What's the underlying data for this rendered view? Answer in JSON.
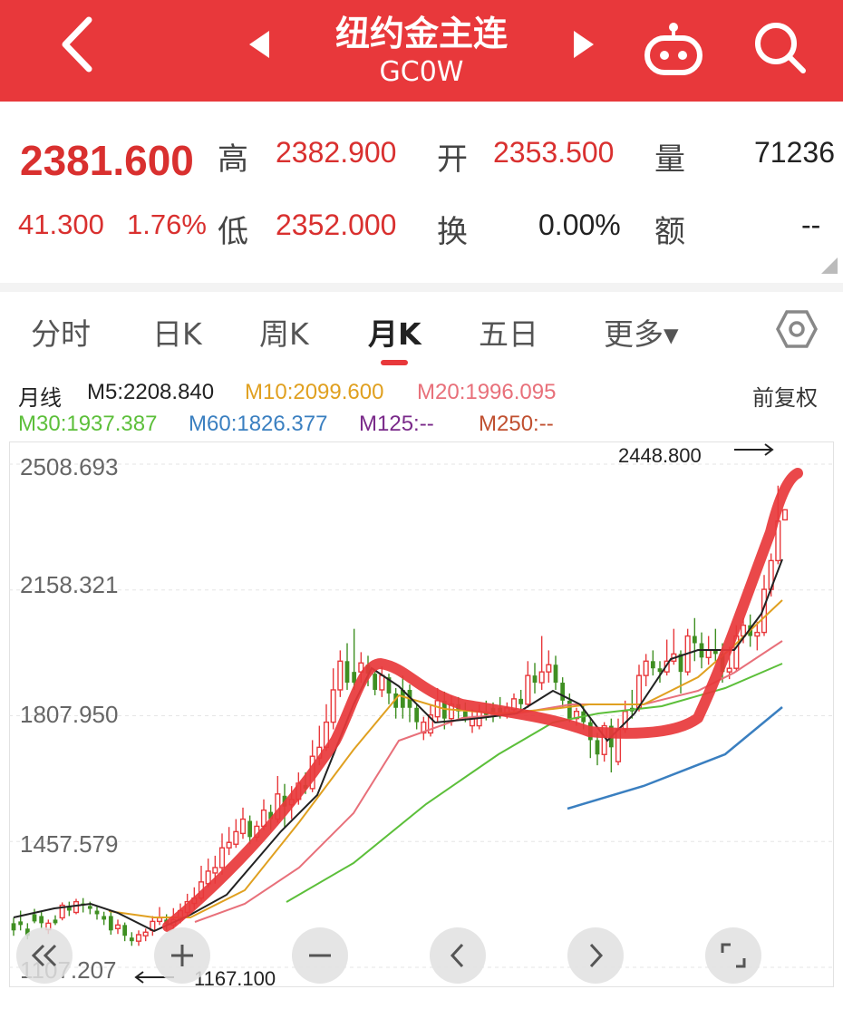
{
  "header": {
    "title": "纽约金主连",
    "code": "GC0W",
    "icons": [
      "back-icon",
      "prev-icon",
      "next-icon",
      "robot-icon",
      "search-icon"
    ],
    "bg_color": "#e8383b"
  },
  "quote": {
    "price": "2381.600",
    "change": "41.300",
    "change_pct": "1.76%",
    "high_label": "高",
    "high": "2382.900",
    "open_label": "开",
    "open": "2353.500",
    "volume_label": "量",
    "volume": "71236",
    "low_label": "低",
    "low": "2352.000",
    "turnover_label": "换",
    "turnover": "0.00%",
    "amount_label": "额",
    "amount": "--"
  },
  "tabs": [
    {
      "label": "分时"
    },
    {
      "label": "日K"
    },
    {
      "label": "周K"
    },
    {
      "label": "月K",
      "active": true
    },
    {
      "label": "五日"
    },
    {
      "label": "更多▾"
    }
  ],
  "indicators": {
    "line_type": "月线",
    "m5": "M5:2208.840",
    "m10": "M10:2099.600",
    "m20": "M20:1996.095",
    "m30": "M30:1937.387",
    "m60": "M60:1826.377",
    "m125": "M125:--",
    "m250": "M250:--",
    "adjust": "前复权",
    "colors": {
      "m5": "#222222",
      "m10": "#e0a020",
      "m20": "#e8707a",
      "m30": "#5cbf3a",
      "m60": "#3a7fc0",
      "m125": "#7a2a8a",
      "m250": "#c05030"
    }
  },
  "chart": {
    "y_labels": [
      "2508.693",
      "2158.321",
      "1807.950",
      "1457.579",
      "1107.207"
    ],
    "max_annotation": "2448.800",
    "min_annotation": "1167.100"
  },
  "chart_data": {
    "type": "candlestick",
    "ylim": [
      1107.207,
      2508.693
    ],
    "y_ticks": [
      2508.693,
      2158.321,
      1807.95,
      1457.579,
      1107.207
    ],
    "high_marker": 2448.8,
    "low_marker": 1167.1,
    "candles": [
      {
        "o": 1210,
        "c": 1230,
        "h": 1245,
        "l": 1195,
        "up": false
      },
      {
        "o": 1225,
        "c": 1235,
        "h": 1265,
        "l": 1210,
        "up": false
      },
      {
        "o": 1215,
        "c": 1195,
        "h": 1230,
        "l": 1185,
        "up": false
      },
      {
        "o": 1235,
        "c": 1255,
        "h": 1270,
        "l": 1230,
        "up": false
      },
      {
        "o": 1250,
        "c": 1230,
        "h": 1262,
        "l": 1215,
        "up": false
      },
      {
        "o": 1212,
        "c": 1230,
        "h": 1240,
        "l": 1200,
        "up": true
      },
      {
        "o": 1230,
        "c": 1240,
        "h": 1252,
        "l": 1225,
        "up": false
      },
      {
        "o": 1245,
        "c": 1280,
        "h": 1288,
        "l": 1238,
        "up": true
      },
      {
        "o": 1275,
        "c": 1265,
        "h": 1290,
        "l": 1250,
        "up": false
      },
      {
        "o": 1260,
        "c": 1290,
        "h": 1298,
        "l": 1255,
        "up": true
      },
      {
        "o": 1285,
        "c": 1280,
        "h": 1300,
        "l": 1260,
        "up": false
      },
      {
        "o": 1278,
        "c": 1270,
        "h": 1290,
        "l": 1255,
        "up": false
      },
      {
        "o": 1265,
        "c": 1255,
        "h": 1276,
        "l": 1240,
        "up": false
      },
      {
        "o": 1250,
        "c": 1240,
        "h": 1262,
        "l": 1225,
        "up": false
      },
      {
        "o": 1250,
        "c": 1210,
        "h": 1262,
        "l": 1198,
        "up": false
      },
      {
        "o": 1215,
        "c": 1225,
        "h": 1240,
        "l": 1200,
        "up": true
      },
      {
        "o": 1225,
        "c": 1195,
        "h": 1232,
        "l": 1180,
        "up": false
      },
      {
        "o": 1190,
        "c": 1180,
        "h": 1205,
        "l": 1167,
        "up": false
      },
      {
        "o": 1180,
        "c": 1198,
        "h": 1210,
        "l": 1167,
        "up": true
      },
      {
        "o": 1195,
        "c": 1205,
        "h": 1215,
        "l": 1180,
        "up": true
      },
      {
        "o": 1210,
        "c": 1235,
        "h": 1250,
        "l": 1195,
        "up": true
      },
      {
        "o": 1235,
        "c": 1245,
        "h": 1275,
        "l": 1225,
        "up": true
      },
      {
        "o": 1240,
        "c": 1228,
        "h": 1255,
        "l": 1210,
        "up": false
      },
      {
        "o": 1225,
        "c": 1240,
        "h": 1272,
        "l": 1215,
        "up": true
      },
      {
        "o": 1240,
        "c": 1265,
        "h": 1285,
        "l": 1230,
        "up": true
      },
      {
        "o": 1260,
        "c": 1290,
        "h": 1312,
        "l": 1250,
        "up": true
      },
      {
        "o": 1285,
        "c": 1300,
        "h": 1330,
        "l": 1268,
        "up": true
      },
      {
        "o": 1300,
        "c": 1345,
        "h": 1390,
        "l": 1290,
        "up": true
      },
      {
        "o": 1340,
        "c": 1375,
        "h": 1410,
        "l": 1330,
        "up": true
      },
      {
        "o": 1370,
        "c": 1385,
        "h": 1418,
        "l": 1340,
        "up": true
      },
      {
        "o": 1385,
        "c": 1440,
        "h": 1480,
        "l": 1365,
        "up": true
      },
      {
        "o": 1440,
        "c": 1455,
        "h": 1498,
        "l": 1420,
        "up": true
      },
      {
        "o": 1450,
        "c": 1485,
        "h": 1520,
        "l": 1440,
        "up": true
      },
      {
        "o": 1480,
        "c": 1520,
        "h": 1552,
        "l": 1465,
        "up": true
      },
      {
        "o": 1515,
        "c": 1470,
        "h": 1530,
        "l": 1450,
        "up": false
      },
      {
        "o": 1470,
        "c": 1500,
        "h": 1515,
        "l": 1460,
        "up": true
      },
      {
        "o": 1500,
        "c": 1545,
        "h": 1575,
        "l": 1490,
        "up": true
      },
      {
        "o": 1540,
        "c": 1520,
        "h": 1560,
        "l": 1490,
        "up": false
      },
      {
        "o": 1520,
        "c": 1590,
        "h": 1640,
        "l": 1510,
        "up": true
      },
      {
        "o": 1585,
        "c": 1555,
        "h": 1618,
        "l": 1498,
        "up": false
      },
      {
        "o": 1560,
        "c": 1575,
        "h": 1612,
        "l": 1520,
        "up": true
      },
      {
        "o": 1575,
        "c": 1620,
        "h": 1650,
        "l": 1560,
        "up": true
      },
      {
        "o": 1615,
        "c": 1605,
        "h": 1650,
        "l": 1590,
        "up": false
      },
      {
        "o": 1605,
        "c": 1695,
        "h": 1740,
        "l": 1595,
        "up": true
      },
      {
        "o": 1690,
        "c": 1720,
        "h": 1780,
        "l": 1670,
        "up": true
      },
      {
        "o": 1720,
        "c": 1790,
        "h": 1840,
        "l": 1710,
        "up": true
      },
      {
        "o": 1790,
        "c": 1880,
        "h": 1940,
        "l": 1770,
        "up": true
      },
      {
        "o": 1880,
        "c": 1960,
        "h": 1990,
        "l": 1860,
        "up": true
      },
      {
        "o": 1960,
        "c": 1900,
        "h": 2010,
        "l": 1880,
        "up": false
      },
      {
        "o": 1900,
        "c": 1930,
        "h": 2050,
        "l": 1880,
        "up": false
      },
      {
        "o": 1930,
        "c": 1955,
        "h": 1985,
        "l": 1900,
        "up": true
      },
      {
        "o": 1950,
        "c": 1925,
        "h": 1975,
        "l": 1890,
        "up": false
      },
      {
        "o": 1925,
        "c": 1880,
        "h": 1930,
        "l": 1865,
        "up": false
      },
      {
        "o": 1880,
        "c": 1920,
        "h": 1945,
        "l": 1860,
        "up": true
      },
      {
        "o": 1915,
        "c": 1870,
        "h": 1925,
        "l": 1840,
        "up": false
      },
      {
        "o": 1870,
        "c": 1830,
        "h": 1885,
        "l": 1800,
        "up": false
      },
      {
        "o": 1830,
        "c": 1880,
        "h": 1920,
        "l": 1800,
        "up": false
      },
      {
        "o": 1880,
        "c": 1830,
        "h": 1895,
        "l": 1790,
        "up": false
      },
      {
        "o": 1830,
        "c": 1790,
        "h": 1840,
        "l": 1770,
        "up": false
      },
      {
        "o": 1790,
        "c": 1760,
        "h": 1805,
        "l": 1740,
        "up": true
      },
      {
        "o": 1760,
        "c": 1810,
        "h": 1840,
        "l": 1750,
        "up": true
      },
      {
        "o": 1805,
        "c": 1850,
        "h": 1885,
        "l": 1790,
        "up": true
      },
      {
        "o": 1850,
        "c": 1800,
        "h": 1875,
        "l": 1770,
        "up": false
      },
      {
        "o": 1800,
        "c": 1840,
        "h": 1865,
        "l": 1780,
        "up": true
      },
      {
        "o": 1840,
        "c": 1820,
        "h": 1860,
        "l": 1800,
        "up": false
      },
      {
        "o": 1820,
        "c": 1800,
        "h": 1845,
        "l": 1790,
        "up": false
      },
      {
        "o": 1800,
        "c": 1780,
        "h": 1825,
        "l": 1760,
        "up": true
      },
      {
        "o": 1780,
        "c": 1820,
        "h": 1840,
        "l": 1770,
        "up": true
      },
      {
        "o": 1820,
        "c": 1810,
        "h": 1850,
        "l": 1795,
        "up": false
      },
      {
        "o": 1810,
        "c": 1830,
        "h": 1845,
        "l": 1790,
        "up": false
      },
      {
        "o": 1830,
        "c": 1815,
        "h": 1860,
        "l": 1800,
        "up": false
      },
      {
        "o": 1815,
        "c": 1830,
        "h": 1845,
        "l": 1800,
        "up": true
      },
      {
        "o": 1825,
        "c": 1855,
        "h": 1870,
        "l": 1810,
        "up": true
      },
      {
        "o": 1855,
        "c": 1840,
        "h": 1880,
        "l": 1820,
        "up": false
      },
      {
        "o": 1840,
        "c": 1920,
        "h": 1960,
        "l": 1830,
        "up": true
      },
      {
        "o": 1920,
        "c": 1900,
        "h": 1955,
        "l": 1870,
        "up": false
      },
      {
        "o": 1900,
        "c": 1930,
        "h": 2030,
        "l": 1880,
        "up": true
      },
      {
        "o": 1930,
        "c": 1950,
        "h": 1990,
        "l": 1900,
        "up": true
      },
      {
        "o": 1950,
        "c": 1900,
        "h": 1975,
        "l": 1880,
        "up": false
      },
      {
        "o": 1900,
        "c": 1850,
        "h": 1915,
        "l": 1830,
        "up": false
      },
      {
        "o": 1850,
        "c": 1800,
        "h": 1870,
        "l": 1790,
        "up": false
      },
      {
        "o": 1800,
        "c": 1820,
        "h": 1830,
        "l": 1780,
        "up": true
      },
      {
        "o": 1820,
        "c": 1790,
        "h": 1835,
        "l": 1770,
        "up": false
      },
      {
        "o": 1790,
        "c": 1740,
        "h": 1800,
        "l": 1690,
        "up": false
      },
      {
        "o": 1740,
        "c": 1700,
        "h": 1760,
        "l": 1670,
        "up": false
      },
      {
        "o": 1700,
        "c": 1780,
        "h": 1790,
        "l": 1680,
        "up": true
      },
      {
        "o": 1780,
        "c": 1720,
        "h": 1800,
        "l": 1650,
        "up": false
      },
      {
        "o": 1680,
        "c": 1770,
        "h": 1800,
        "l": 1670,
        "up": true
      },
      {
        "o": 1770,
        "c": 1820,
        "h": 1850,
        "l": 1760,
        "up": true
      },
      {
        "o": 1820,
        "c": 1830,
        "h": 1880,
        "l": 1800,
        "up": false
      },
      {
        "o": 1830,
        "c": 1920,
        "h": 1950,
        "l": 1820,
        "up": true
      },
      {
        "o": 1920,
        "c": 1960,
        "h": 1980,
        "l": 1890,
        "up": true
      },
      {
        "o": 1960,
        "c": 1940,
        "h": 1990,
        "l": 1920,
        "up": false
      },
      {
        "o": 1940,
        "c": 1930,
        "h": 1960,
        "l": 1900,
        "up": false
      },
      {
        "o": 1930,
        "c": 1960,
        "h": 2020,
        "l": 1920,
        "up": true
      },
      {
        "o": 1960,
        "c": 1980,
        "h": 2050,
        "l": 1950,
        "up": true
      },
      {
        "o": 1980,
        "c": 1930,
        "h": 1990,
        "l": 1870,
        "up": false
      },
      {
        "o": 1930,
        "c": 2030,
        "h": 2050,
        "l": 1920,
        "up": true
      },
      {
        "o": 2030,
        "c": 2010,
        "h": 2080,
        "l": 1960,
        "up": false
      },
      {
        "o": 2010,
        "c": 1970,
        "h": 2040,
        "l": 1940,
        "up": false
      },
      {
        "o": 1970,
        "c": 1990,
        "h": 2030,
        "l": 1950,
        "up": true
      },
      {
        "o": 1990,
        "c": 1980,
        "h": 2050,
        "l": 1960,
        "up": false
      },
      {
        "o": 1980,
        "c": 1930,
        "h": 2010,
        "l": 1900,
        "up": false
      },
      {
        "o": 1930,
        "c": 1940,
        "h": 2000,
        "l": 1910,
        "up": true
      },
      {
        "o": 1940,
        "c": 2030,
        "h": 2060,
        "l": 1930,
        "up": true
      },
      {
        "o": 2030,
        "c": 2060,
        "h": 2080,
        "l": 2010,
        "up": true
      },
      {
        "o": 2060,
        "c": 2030,
        "h": 2090,
        "l": 2000,
        "up": false
      },
      {
        "o": 2030,
        "c": 2040,
        "h": 2070,
        "l": 1990,
        "up": true
      },
      {
        "o": 2040,
        "c": 2160,
        "h": 2200,
        "l": 2030,
        "up": true
      },
      {
        "o": 2160,
        "c": 2240,
        "h": 2260,
        "l": 2140,
        "up": true
      },
      {
        "o": 2240,
        "c": 2350,
        "h": 2448.8,
        "l": 2230,
        "up": true
      },
      {
        "o": 2353.5,
        "c": 2381.6,
        "h": 2382.9,
        "l": 2352,
        "up": true
      }
    ],
    "series": [
      {
        "name": "M5",
        "color": "#222222",
        "points": [
          [
            0.14,
            1245
          ],
          [
            0.2,
            1250
          ],
          [
            0.28,
            1270
          ],
          [
            0.34,
            1300
          ],
          [
            0.41,
            1390
          ],
          [
            0.47,
            1470
          ],
          [
            0.53,
            1560
          ],
          [
            0.62,
            1640
          ],
          [
            0.7,
            1780
          ],
          [
            0.8,
            1880
          ],
          [
            0.88,
            1930
          ],
          [
            0.96,
            1920
          ],
          [
            1.02,
            1870
          ],
          [
            1.1,
            1860
          ],
          [
            1.2,
            1830
          ],
          [
            1.3,
            1830
          ],
          [
            1.4,
            1840
          ],
          [
            1.5,
            1860
          ],
          [
            1.6,
            1850
          ],
          [
            1.7,
            1840
          ],
          [
            1.8,
            1840
          ],
          [
            1.9,
            1800
          ]
        ]
      }
    ],
    "title": ""
  }
}
